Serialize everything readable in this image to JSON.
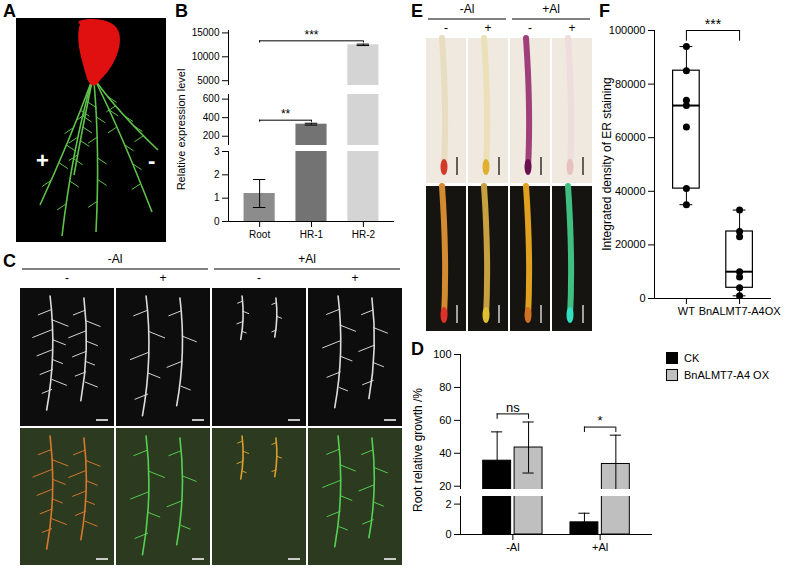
{
  "figure": {
    "image_panels": [
      {
        "panel": "A",
        "labels": [
          "+",
          "-"
        ]
      },
      {
        "panel": "C",
        "conditions": [
          {
            "label": "-Al",
            "columns": [
              "-",
              "+"
            ]
          },
          {
            "label": "+Al",
            "columns": [
              "-",
              "+"
            ]
          }
        ]
      },
      {
        "panel": "E",
        "conditions": [
          {
            "label": "-Al",
            "columns": [
              "-",
              "+"
            ]
          },
          {
            "label": "+Al",
            "columns": [
              "-",
              "+"
            ]
          }
        ]
      }
    ]
  },
  "chart_data": [
    {
      "panel": "B",
      "type": "bar",
      "y_label": "Relative expression level",
      "categories": [
        "Root",
        "HR-1",
        "HR-2"
      ],
      "values": [
        1.2,
        330,
        12500
      ],
      "errors": [
        0.6,
        10,
        150
      ],
      "colors": [
        "#8c8c8c",
        "#737373",
        "#d4d4d4"
      ],
      "y_segments": [
        {
          "ylim": [
            0,
            3
          ],
          "yticks": [
            0,
            1,
            2,
            3
          ]
        },
        {
          "ylim": [
            100,
            650
          ],
          "yticks": [
            200,
            400,
            600
          ]
        },
        {
          "ylim": [
            4000,
            15500
          ],
          "yticks": [
            5000,
            10000,
            15000
          ]
        }
      ],
      "annotations": [
        {
          "text": "**",
          "from": "Root",
          "to": "HR-1"
        },
        {
          "text": "***",
          "from": "Root",
          "to": "HR-2"
        }
      ]
    },
    {
      "panel": "D",
      "type": "bar",
      "y_label": "Root relative growth /%",
      "categories": [
        "-Al",
        "+Al"
      ],
      "series": [
        {
          "name": "CK",
          "color": "#000000",
          "values": [
            35.5,
            0.8
          ],
          "errors": [
            17.5,
            0.6
          ]
        },
        {
          "name": "BnALMT7-A4 OX",
          "color": "#bfbfbf",
          "values": [
            43.5,
            33.5
          ],
          "errors": [
            15.5,
            17.5
          ]
        }
      ],
      "y_segments": [
        {
          "ylim": [
            0,
            2.5
          ],
          "yticks": [
            0,
            2
          ]
        },
        {
          "ylim": [
            18,
            100
          ],
          "yticks": [
            20,
            40,
            60,
            80,
            100
          ]
        }
      ],
      "legend": "right",
      "annotations": [
        {
          "text": "ns",
          "category": "-Al"
        },
        {
          "text": "*",
          "category": "+Al"
        }
      ]
    },
    {
      "panel": "F",
      "type": "box",
      "y_label": "Integrated density of ER staining",
      "categories": [
        "WT",
        "BnALMT7-A4OX"
      ],
      "values": [
        [
          35000,
          41000,
          64000,
          72000,
          74000,
          85000,
          94000
        ],
        [
          1000,
          4000,
          8000,
          10000,
          23000,
          25000,
          33000
        ]
      ],
      "ylim": [
        0,
        100000
      ],
      "yticks": [
        0,
        20000,
        40000,
        60000,
        80000,
        100000
      ],
      "annotations": [
        {
          "text": "***",
          "from": "WT",
          "to": "BnALMT7-A4OX"
        }
      ]
    }
  ]
}
